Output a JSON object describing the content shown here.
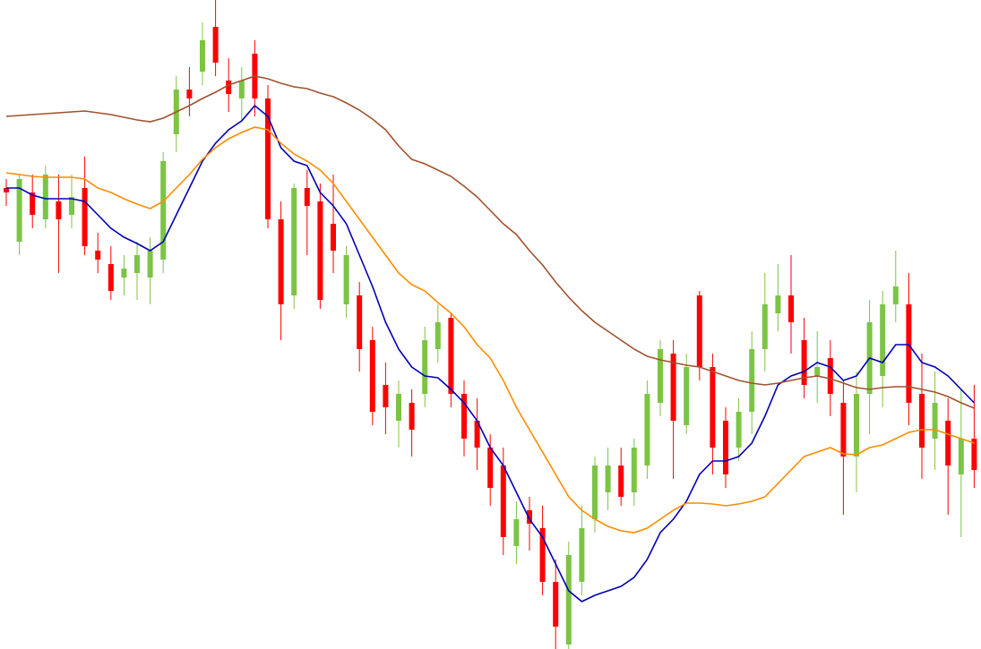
{
  "chart_data": {
    "type": "candlestick",
    "up_color": "#7cc444",
    "down_color": "#ff0000",
    "ylim": [
      0,
      725
    ],
    "open": [
      515,
      455,
      510,
      480,
      500,
      485,
      515,
      445,
      430,
      415,
      420,
      415,
      435,
      575,
      625,
      645,
      695,
      635,
      615,
      665,
      615,
      480,
      395,
      515,
      500,
      475,
      385,
      395,
      345,
      295,
      255,
      275,
      285,
      335,
      370,
      285,
      255,
      225,
      205,
      115,
      155,
      135,
      75,
      5,
      75,
      145,
      175,
      205,
      175,
      205,
      275,
      330,
      250,
      395,
      315,
      255,
      225,
      265,
      335,
      375,
      395,
      345,
      305,
      325,
      275,
      215,
      285,
      305,
      385,
      385,
      285,
      235,
      255,
      195,
      235
    ],
    "high": [
      525,
      530,
      530,
      540,
      530,
      530,
      550,
      465,
      450,
      440,
      455,
      460,
      555,
      640,
      650,
      700,
      725,
      660,
      650,
      680,
      630,
      500,
      520,
      535,
      520,
      530,
      450,
      410,
      360,
      320,
      300,
      290,
      360,
      385,
      375,
      300,
      280,
      240,
      225,
      165,
      170,
      160,
      100,
      120,
      160,
      215,
      225,
      225,
      235,
      300,
      345,
      345,
      330,
      400,
      330,
      270,
      280,
      355,
      420,
      430,
      440,
      370,
      355,
      345,
      300,
      310,
      390,
      400,
      445,
      420,
      330,
      310,
      280,
      290,
      295
    ],
    "low": [
      495,
      440,
      470,
      470,
      420,
      470,
      440,
      420,
      390,
      395,
      390,
      385,
      420,
      555,
      595,
      630,
      640,
      600,
      590,
      595,
      470,
      345,
      380,
      440,
      380,
      420,
      370,
      310,
      250,
      240,
      225,
      215,
      270,
      320,
      270,
      215,
      200,
      160,
      105,
      95,
      110,
      60,
      0,
      0,
      60,
      130,
      155,
      160,
      160,
      190,
      260,
      190,
      240,
      300,
      195,
      180,
      210,
      240,
      310,
      355,
      330,
      280,
      275,
      260,
      150,
      175,
      240,
      270,
      365,
      250,
      190,
      200,
      150,
      125,
      180
    ],
    "close": [
      510,
      525,
      485,
      530,
      480,
      505,
      450,
      435,
      400,
      425,
      440,
      445,
      545,
      625,
      615,
      680,
      655,
      620,
      635,
      615,
      480,
      385,
      515,
      495,
      390,
      445,
      440,
      335,
      265,
      270,
      285,
      245,
      345,
      365,
      285,
      235,
      225,
      180,
      125,
      145,
      140,
      75,
      25,
      105,
      135,
      205,
      205,
      170,
      225,
      285,
      335,
      255,
      315,
      315,
      225,
      195,
      265,
      335,
      385,
      395,
      365,
      295,
      315,
      285,
      215,
      285,
      365,
      385,
      405,
      275,
      225,
      275,
      205,
      235,
      200
    ],
    "lines": [
      {
        "color": "#0000b4",
        "values": [
          515,
          515,
          507,
          503,
          503,
          503,
          500,
          485,
          470,
          460,
          453,
          445,
          455,
          485,
          515,
          545,
          565,
          580,
          590,
          607,
          595,
          560,
          545,
          540,
          510,
          495,
          475,
          440,
          405,
          365,
          335,
          315,
          305,
          303,
          290,
          275,
          255,
          225,
          205,
          175,
          145,
          125,
          95,
          65,
          53,
          60,
          65,
          70,
          80,
          100,
          130,
          145,
          165,
          195,
          210,
          210,
          215,
          230,
          260,
          295,
          305,
          310,
          320,
          315,
          300,
          305,
          325,
          320,
          340,
          340,
          320,
          315,
          305,
          290,
          275
        ]
      },
      {
        "color": "#ff8c00",
        "values": [
          532,
          530,
          528,
          527,
          527,
          527,
          525,
          515,
          510,
          503,
          497,
          492,
          500,
          515,
          530,
          547,
          560,
          570,
          577,
          583,
          580,
          565,
          553,
          545,
          535,
          520,
          500,
          480,
          460,
          440,
          420,
          407,
          400,
          387,
          375,
          360,
          340,
          325,
          300,
          270,
          245,
          220,
          195,
          170,
          155,
          145,
          137,
          132,
          130,
          135,
          145,
          155,
          163,
          163,
          162,
          160,
          162,
          165,
          170,
          185,
          200,
          215,
          220,
          225,
          218,
          217,
          225,
          228,
          235,
          242,
          245,
          245,
          240,
          235,
          230
        ]
      },
      {
        "color": "#a0522d",
        "values": [
          595,
          596,
          597,
          598,
          599,
          600,
          601,
          599,
          597,
          594,
          591,
          589,
          593,
          600,
          607,
          615,
          622,
          630,
          635,
          640,
          637,
          632,
          628,
          626,
          621,
          617,
          610,
          602,
          592,
          580,
          562,
          547,
          542,
          535,
          528,
          517,
          505,
          490,
          475,
          463,
          445,
          429,
          410,
          393,
          378,
          365,
          355,
          345,
          335,
          327,
          323,
          320,
          317,
          315,
          310,
          305,
          300,
          297,
          295,
          297,
          300,
          303,
          305,
          302,
          297,
          292,
          290,
          292,
          293,
          293,
          290,
          287,
          282,
          275,
          269
        ]
      }
    ]
  }
}
